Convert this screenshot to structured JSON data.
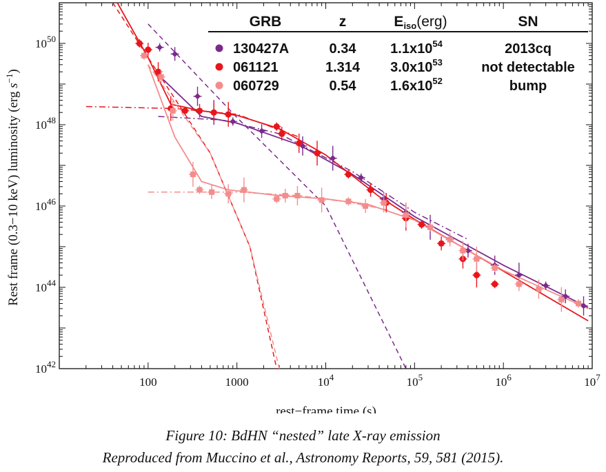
{
  "chart_data": {
    "type": "scatter",
    "xlabel": "rest−frame time (s)",
    "ylabel": "Rest frame (0.3−10 keV) luminosity (erg s−1)",
    "ylabel_parts": {
      "main": "Rest frame (0.3−10 keV) luminosity (erg ",
      "italic": "s",
      "sup": "−1",
      "close": ")"
    },
    "x_scale": "log",
    "y_scale": "log",
    "xlim": [
      10,
      10000000
    ],
    "ylim": [
      1e+42,
      1e+51
    ],
    "x_ticks": [
      {
        "value": 100,
        "label": "100"
      },
      {
        "value": 1000,
        "label": "1000"
      },
      {
        "value": 10000,
        "base": "10",
        "exp": "4"
      },
      {
        "value": 100000,
        "base": "10",
        "exp": "5"
      },
      {
        "value": 1000000,
        "base": "10",
        "exp": "6"
      },
      {
        "value": 10000000,
        "base": "10",
        "exp": "7"
      }
    ],
    "y_ticks": [
      {
        "value": 1e+42,
        "base": "10",
        "exp": "42"
      },
      {
        "value": 1e+44,
        "base": "10",
        "exp": "44"
      },
      {
        "value": 1e+46,
        "base": "10",
        "exp": "46"
      },
      {
        "value": 1e+48,
        "base": "10",
        "exp": "48"
      },
      {
        "value": 1e+50,
        "base": "10",
        "exp": "50"
      }
    ],
    "grid": false,
    "legend": {
      "position": "top-right",
      "headers": {
        "grb": "GRB",
        "z": "z",
        "eiso_main": "E",
        "eiso_sub": "iso",
        "eiso_unit": "(erg)",
        "sn": "SN"
      },
      "rows": [
        {
          "grb": "130427A",
          "z": "0.34",
          "eiso_base": "1.1x10",
          "eiso_exp": "54",
          "sn": "2013cq",
          "color": "#7b2a8c"
        },
        {
          "grb": "061121",
          "z": "1.314",
          "eiso_base": "3.0x10",
          "eiso_exp": "53",
          "sn": "not detectable",
          "color": "#e8161c"
        },
        {
          "grb": "060729",
          "z": "0.54",
          "eiso_base": "1.6x10",
          "eiso_exp": "52",
          "sn": "bump",
          "color": "#f48c8c"
        }
      ]
    },
    "series": [
      {
        "grb": "130427A",
        "color": "#7b2a8c",
        "marker": "diamond",
        "points": [
          [
            135,
            8e+49
          ],
          [
            200,
            5.5e+49
          ],
          [
            360,
            5e+48
          ],
          [
            550,
            2e+48
          ],
          [
            900,
            1.2e+48
          ],
          [
            1900,
            7e+47
          ],
          [
            5500,
            3e+47
          ],
          [
            12000,
            1.5e+47
          ],
          [
            25000,
            5e+46
          ],
          [
            45000,
            1.5e+46
          ],
          [
            80000,
            7e+45
          ],
          [
            150000,
            3e+45
          ],
          [
            250000,
            1.5e+45
          ],
          [
            400000,
            8e+44
          ],
          [
            800000,
            3.5e+44
          ],
          [
            1500000,
            2e+44
          ],
          [
            3000000,
            1.1e+44
          ],
          [
            5000000,
            6e+43
          ],
          [
            8000000,
            3.5e+43
          ]
        ],
        "fit": [
          [
            130,
            1.7e+49
          ],
          [
            400,
            1.6e+48
          ],
          [
            1000,
            1.1e+48
          ],
          [
            5000,
            3.2e+47
          ],
          [
            20000,
            6e+46
          ],
          [
            100000,
            5.5e+45
          ],
          [
            1000000,
            3.5e+44
          ],
          [
            9000000,
            3.2e+43
          ]
        ],
        "steep_decay": [
          [
            100,
            3e+50
          ],
          [
            1000,
            1.5e+48
          ],
          [
            10000,
            1e+46
          ],
          [
            80000,
            1e+42
          ]
        ],
        "plateau_component": [
          [
            130,
            1.6e+48
          ],
          [
            700,
            1.3e+48
          ],
          [
            3000,
            6e+47
          ],
          [
            20000,
            7e+46
          ],
          [
            100000,
            7e+45
          ],
          [
            400000,
            1.5e+45
          ]
        ]
      },
      {
        "grb": "061121",
        "color": "#e8161c",
        "marker": "circle",
        "points": [
          [
            80,
            1e+50
          ],
          [
            100,
            7e+49
          ],
          [
            130,
            2e+49
          ],
          [
            180,
            2.5e+48
          ],
          [
            260,
            2.2e+48
          ],
          [
            380,
            2.2e+48
          ],
          [
            550,
            2e+48
          ],
          [
            800,
            1.8e+48
          ],
          [
            2800,
            9e+47
          ],
          [
            3200,
            6e+47
          ],
          [
            5000,
            3.5e+47
          ],
          [
            8000,
            2e+47
          ],
          [
            18000,
            6e+46
          ],
          [
            32000,
            2.5e+46
          ],
          [
            48000,
            1.2e+46
          ],
          [
            80000,
            5e+45
          ],
          [
            120000,
            3.5e+45
          ],
          [
            200000,
            1.2e+45
          ],
          [
            350000,
            5e+44
          ],
          [
            500000,
            2e+44
          ],
          [
            800000,
            1.2e+44
          ]
        ],
        "fit": [
          [
            45,
            1e+51
          ],
          [
            100,
            4.5e+49
          ],
          [
            180,
            3.2e+48
          ],
          [
            400,
            2.2e+48
          ],
          [
            1000,
            1.7e+48
          ],
          [
            3000,
            8e+47
          ],
          [
            10000,
            1.8e+47
          ],
          [
            40000,
            1.7e+46
          ],
          [
            100000,
            4.7e+45
          ],
          [
            1000000,
            2.5e+44
          ],
          [
            9000000,
            1.5e+43
          ]
        ],
        "steep_decay": [
          [
            40,
            1e+51
          ],
          [
            100,
            4.5e+49
          ],
          [
            500,
            2e+47
          ],
          [
            1400,
            1e+45
          ],
          [
            2800,
            1e+42
          ]
        ],
        "plateau_component": [
          [
            20,
            2.8e+48
          ],
          [
            200,
            2.5e+48
          ],
          [
            1000,
            1.8e+48
          ],
          [
            5000,
            5e+47
          ]
        ]
      },
      {
        "grb": "060729",
        "color": "#f48c8c",
        "marker": "square",
        "points": [
          [
            90,
            5e+49
          ],
          [
            140,
            1.5e+49
          ],
          [
            190,
            2.2e+48
          ],
          [
            320,
            6e+46
          ],
          [
            380,
            2.5e+46
          ],
          [
            520,
            2.2e+46
          ],
          [
            800,
            2e+46
          ],
          [
            1200,
            2.5e+46
          ],
          [
            2800,
            1.5e+46
          ],
          [
            3500,
            1.8e+46
          ],
          [
            4800,
            1.8e+46
          ],
          [
            9000,
            1.4e+46
          ],
          [
            18000,
            1.3e+46
          ],
          [
            28000,
            1e+46
          ],
          [
            45000,
            1.2e+46
          ],
          [
            80000,
            6e+45
          ],
          [
            150000,
            3e+45
          ],
          [
            250000,
            1.5e+45
          ],
          [
            350000,
            8e+44
          ],
          [
            500000,
            5e+44
          ],
          [
            800000,
            3e+44
          ],
          [
            1500000,
            1.2e+44
          ],
          [
            2500000,
            9e+43
          ],
          [
            4500000,
            5e+43
          ],
          [
            7000000,
            4e+43
          ]
        ],
        "fit": [
          [
            100,
            3e+49
          ],
          [
            200,
            5e+47
          ],
          [
            400,
            4e+46
          ],
          [
            800,
            2.5e+46
          ],
          [
            3000,
            1.8e+46
          ],
          [
            10000,
            1.5e+46
          ],
          [
            30000,
            1.1e+46
          ],
          [
            100000,
            4.5e+45
          ],
          [
            1000000,
            2.6e+44
          ],
          [
            9000000,
            3e+43
          ]
        ],
        "steep_decay": [
          [
            100,
            3e+49
          ],
          [
            500,
            2e+47
          ],
          [
            1400,
            1e+45
          ],
          [
            3000,
            1e+42
          ]
        ],
        "plateau_component": [
          [
            100,
            2.2e+46
          ],
          [
            1000,
            2.2e+46
          ],
          [
            5000,
            1.8e+46
          ],
          [
            20000,
            1.2e+46
          ],
          [
            50000,
            8e+45
          ]
        ]
      }
    ]
  },
  "caption": {
    "line1": "Figure 10: BdHN “nested” late X-ray emission",
    "line2": "Reproduced from Muccino et al., Astronomy Reports, 59, 581 (2015)."
  }
}
